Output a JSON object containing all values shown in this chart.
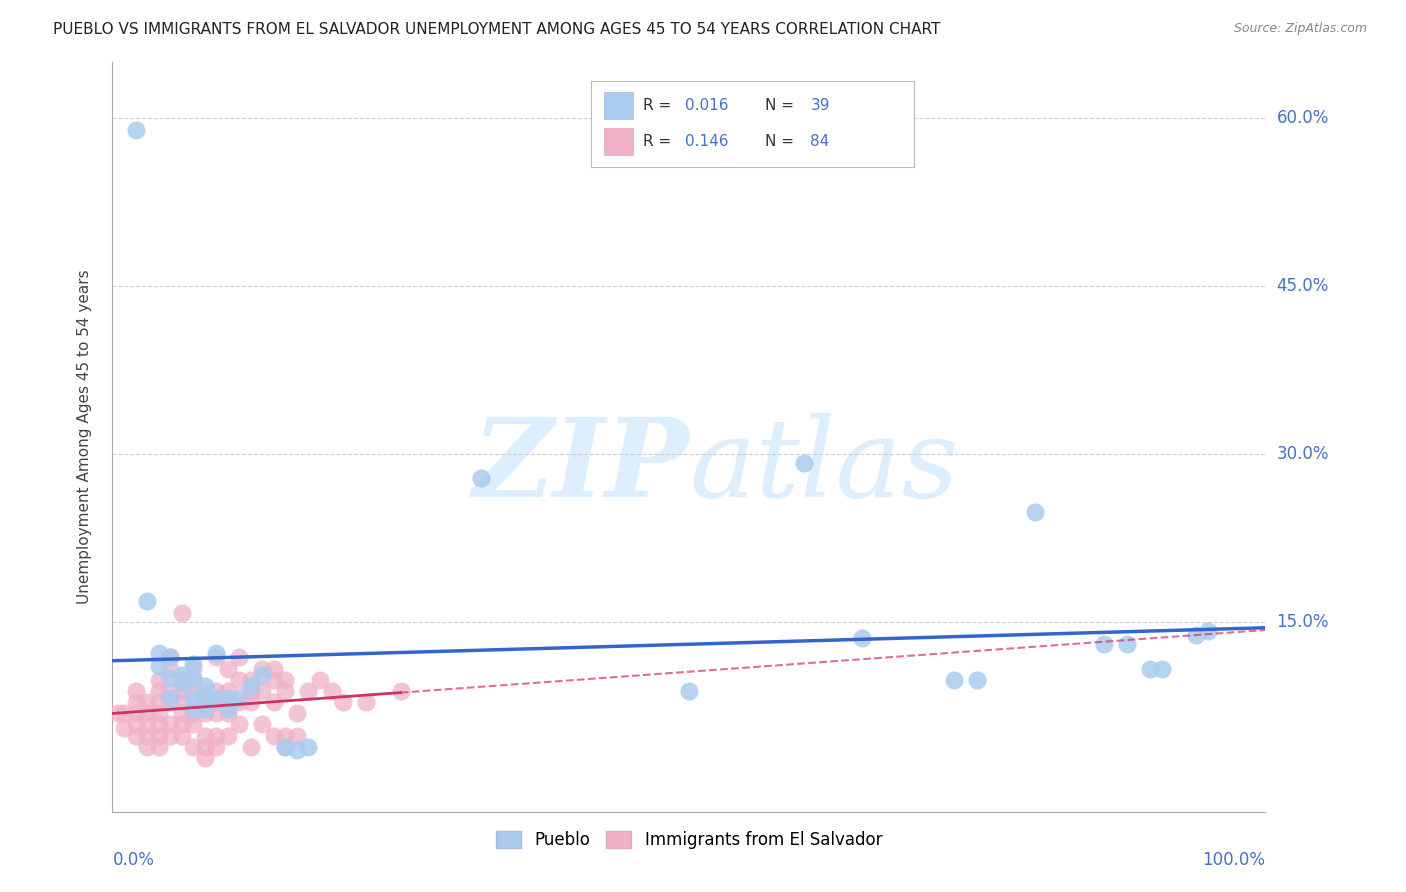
{
  "title": "PUEBLO VS IMMIGRANTS FROM EL SALVADOR UNEMPLOYMENT AMONG AGES 45 TO 54 YEARS CORRELATION CHART",
  "source": "Source: ZipAtlas.com",
  "ylabel": "Unemployment Among Ages 45 to 54 years",
  "ytick_labels": [
    "15.0%",
    "30.0%",
    "45.0%",
    "60.0%"
  ],
  "ytick_values": [
    0.15,
    0.3,
    0.45,
    0.6
  ],
  "xlim": [
    0.0,
    1.0
  ],
  "ylim": [
    -0.02,
    0.65
  ],
  "pueblo_color": "#aaccee",
  "salvador_color": "#f0b0c8",
  "pueblo_line_color": "#3366cc",
  "salvador_line_color": "#cc3366",
  "watermark_color": "#ddeeff",
  "pueblo_scatter": [
    [
      0.02,
      0.59
    ],
    [
      0.03,
      0.168
    ],
    [
      0.04,
      0.122
    ],
    [
      0.04,
      0.11
    ],
    [
      0.05,
      0.118
    ],
    [
      0.05,
      0.1
    ],
    [
      0.05,
      0.082
    ],
    [
      0.06,
      0.095
    ],
    [
      0.06,
      0.102
    ],
    [
      0.07,
      0.112
    ],
    [
      0.07,
      0.1
    ],
    [
      0.07,
      0.082
    ],
    [
      0.07,
      0.072
    ],
    [
      0.08,
      0.092
    ],
    [
      0.08,
      0.082
    ],
    [
      0.08,
      0.072
    ],
    [
      0.09,
      0.122
    ],
    [
      0.09,
      0.082
    ],
    [
      0.1,
      0.082
    ],
    [
      0.1,
      0.072
    ],
    [
      0.11,
      0.082
    ],
    [
      0.12,
      0.092
    ],
    [
      0.13,
      0.102
    ],
    [
      0.15,
      0.038
    ],
    [
      0.16,
      0.035
    ],
    [
      0.17,
      0.038
    ],
    [
      0.32,
      0.278
    ],
    [
      0.5,
      0.088
    ],
    [
      0.6,
      0.292
    ],
    [
      0.65,
      0.135
    ],
    [
      0.73,
      0.098
    ],
    [
      0.75,
      0.098
    ],
    [
      0.8,
      0.248
    ],
    [
      0.86,
      0.13
    ],
    [
      0.88,
      0.13
    ],
    [
      0.9,
      0.108
    ],
    [
      0.91,
      0.108
    ],
    [
      0.94,
      0.138
    ],
    [
      0.95,
      0.142
    ]
  ],
  "salvador_scatter": [
    [
      0.005,
      0.068
    ],
    [
      0.01,
      0.068
    ],
    [
      0.01,
      0.055
    ],
    [
      0.02,
      0.088
    ],
    [
      0.02,
      0.078
    ],
    [
      0.02,
      0.068
    ],
    [
      0.02,
      0.058
    ],
    [
      0.02,
      0.048
    ],
    [
      0.03,
      0.078
    ],
    [
      0.03,
      0.068
    ],
    [
      0.03,
      0.058
    ],
    [
      0.03,
      0.048
    ],
    [
      0.03,
      0.038
    ],
    [
      0.04,
      0.098
    ],
    [
      0.04,
      0.088
    ],
    [
      0.04,
      0.078
    ],
    [
      0.04,
      0.068
    ],
    [
      0.04,
      0.058
    ],
    [
      0.04,
      0.048
    ],
    [
      0.04,
      0.038
    ],
    [
      0.05,
      0.118
    ],
    [
      0.05,
      0.108
    ],
    [
      0.05,
      0.088
    ],
    [
      0.05,
      0.078
    ],
    [
      0.05,
      0.058
    ],
    [
      0.05,
      0.048
    ],
    [
      0.06,
      0.158
    ],
    [
      0.06,
      0.098
    ],
    [
      0.06,
      0.088
    ],
    [
      0.06,
      0.078
    ],
    [
      0.06,
      0.068
    ],
    [
      0.06,
      0.058
    ],
    [
      0.06,
      0.048
    ],
    [
      0.07,
      0.108
    ],
    [
      0.07,
      0.098
    ],
    [
      0.07,
      0.088
    ],
    [
      0.07,
      0.068
    ],
    [
      0.07,
      0.058
    ],
    [
      0.07,
      0.038
    ],
    [
      0.08,
      0.088
    ],
    [
      0.08,
      0.078
    ],
    [
      0.08,
      0.068
    ],
    [
      0.08,
      0.048
    ],
    [
      0.08,
      0.038
    ],
    [
      0.08,
      0.028
    ],
    [
      0.09,
      0.118
    ],
    [
      0.09,
      0.088
    ],
    [
      0.09,
      0.078
    ],
    [
      0.09,
      0.068
    ],
    [
      0.09,
      0.048
    ],
    [
      0.09,
      0.038
    ],
    [
      0.1,
      0.108
    ],
    [
      0.1,
      0.088
    ],
    [
      0.1,
      0.078
    ],
    [
      0.1,
      0.068
    ],
    [
      0.1,
      0.048
    ],
    [
      0.11,
      0.118
    ],
    [
      0.11,
      0.098
    ],
    [
      0.11,
      0.078
    ],
    [
      0.11,
      0.058
    ],
    [
      0.12,
      0.098
    ],
    [
      0.12,
      0.088
    ],
    [
      0.12,
      0.078
    ],
    [
      0.12,
      0.038
    ],
    [
      0.13,
      0.108
    ],
    [
      0.13,
      0.088
    ],
    [
      0.13,
      0.058
    ],
    [
      0.14,
      0.108
    ],
    [
      0.14,
      0.098
    ],
    [
      0.14,
      0.078
    ],
    [
      0.14,
      0.048
    ],
    [
      0.15,
      0.098
    ],
    [
      0.15,
      0.088
    ],
    [
      0.15,
      0.048
    ],
    [
      0.15,
      0.038
    ],
    [
      0.16,
      0.068
    ],
    [
      0.16,
      0.048
    ],
    [
      0.17,
      0.088
    ],
    [
      0.18,
      0.098
    ],
    [
      0.19,
      0.088
    ],
    [
      0.2,
      0.078
    ],
    [
      0.22,
      0.078
    ],
    [
      0.25,
      0.088
    ]
  ],
  "pueblo_trendline": [
    0.0,
    1.0,
    0.108,
    0.113
  ],
  "salvador_trendline_solid": [
    0.0,
    0.25,
    0.028,
    0.068
  ],
  "salvador_trendline_dashed": [
    0.25,
    1.0,
    0.068,
    0.108
  ]
}
